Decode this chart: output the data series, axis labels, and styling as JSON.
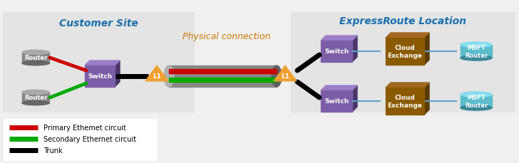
{
  "title_left": "Customer Site",
  "title_right": "ExpressRoute Location",
  "physical_connection_label": "Physical connection",
  "l1_label": "L1",
  "bg_color": "#f0f0f0",
  "section_bg": "#e0e0e0",
  "legend_box_color": "#ffffff",
  "legend_items": [
    {
      "label": "Primary Ethemet circuit",
      "color": "#cc0000"
    },
    {
      "label": "Secondary Ethernet circuit",
      "color": "#00aa00"
    },
    {
      "label": "Trunk",
      "color": "#000000"
    }
  ],
  "switch_color": "#7b5ea7",
  "switch_shadow": "#4a3568",
  "router_color": "#888888",
  "router_top": "#aaaaaa",
  "router_bot": "#666666",
  "cloud_exchange_color": "#8b5a00",
  "cloud_exchange_right": "#5c3a00",
  "cloud_exchange_top": "#a06820",
  "msft_router_color": "#5bbccc",
  "msft_router_top": "#88ddee",
  "msft_router_bot": "#3a8899",
  "triangle_color": "#f0a030",
  "line_color_trunk": "#000000",
  "line_color_primary": "#cc0000",
  "line_color_secondary": "#00aa00",
  "line_color_blue": "#5ba3c9",
  "title_left_color": "#1a6fad",
  "title_right_color": "#1a6fad",
  "phys_conn_color": "#cc7700"
}
